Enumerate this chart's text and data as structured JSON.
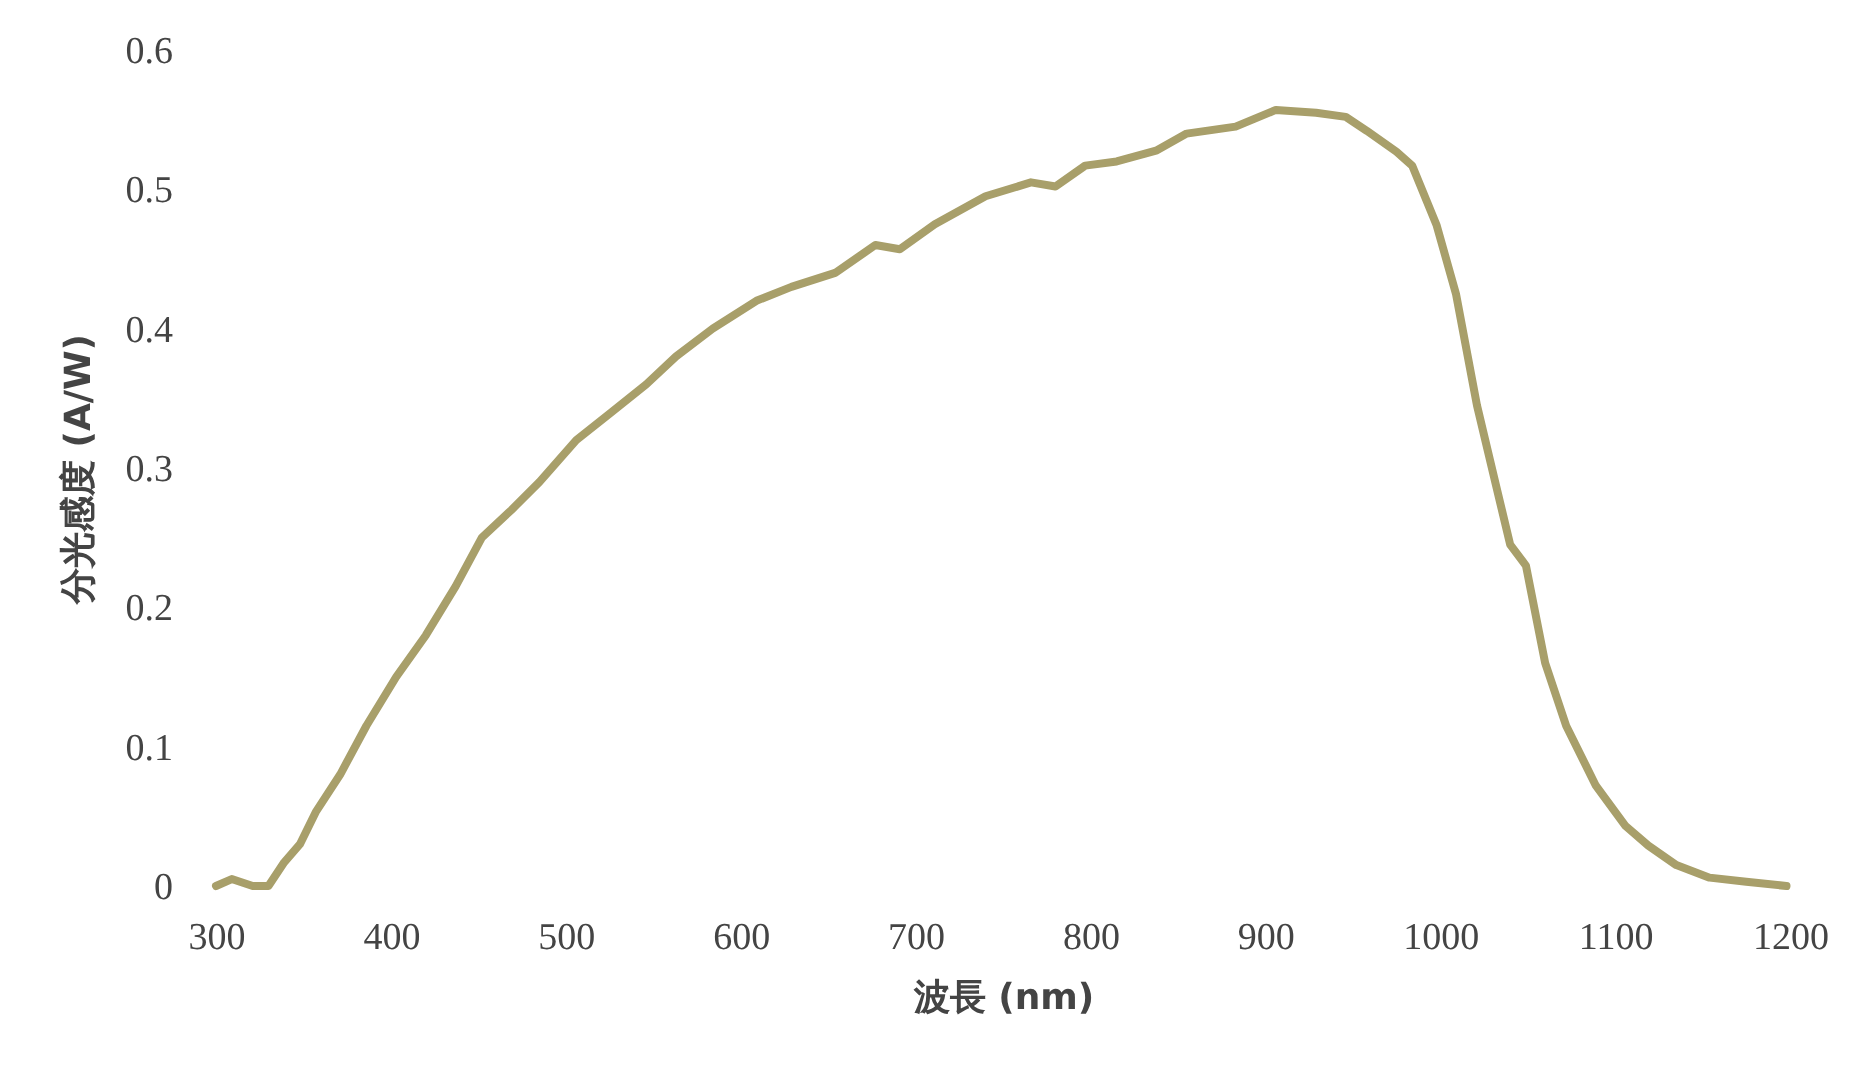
{
  "chart_data": {
    "type": "line",
    "xlabel": "波長 (nm)",
    "ylabel": "分光感度 (A/W)",
    "x": [
      300,
      309,
      321,
      330,
      339,
      348,
      357,
      371,
      386,
      403,
      420,
      437,
      452,
      469,
      485,
      506,
      526,
      546,
      563,
      584,
      609,
      629,
      654,
      677,
      691,
      711,
      740,
      766,
      780,
      797,
      815,
      838,
      855,
      883,
      906,
      929,
      946,
      958,
      975,
      984,
      998,
      1009,
      1021,
      1032,
      1040,
      1049,
      1060,
      1072,
      1089,
      1106,
      1119,
      1135,
      1154,
      1175,
      1198
    ],
    "series": [
      {
        "color": "#a89f6a",
        "values": [
          0,
          0.005,
          0,
          0,
          0.017,
          0.03,
          0.053,
          0.08,
          0.115,
          0.15,
          0.18,
          0.215,
          0.25,
          0.27,
          0.29,
          0.32,
          0.34,
          0.36,
          0.38,
          0.4,
          0.42,
          0.43,
          0.44,
          0.46,
          0.457,
          0.475,
          0.495,
          0.505,
          0.502,
          0.517,
          0.52,
          0.528,
          0.54,
          0.545,
          0.557,
          0.555,
          0.552,
          0.542,
          0.527,
          0.517,
          0.474,
          0.425,
          0.345,
          0.287,
          0.245,
          0.23,
          0.16,
          0.115,
          0.072,
          0.043,
          0.029,
          0.015,
          0.006,
          0.003,
          0
        ]
      }
    ],
    "xlim": [
      300,
      1200
    ],
    "xticks": [
      300,
      400,
      500,
      600,
      700,
      800,
      900,
      1000,
      1100,
      1200
    ],
    "ylim": [
      0,
      0.6
    ],
    "yticks": [
      0,
      0.1,
      0.2,
      0.3,
      0.4,
      0.5,
      0.6
    ],
    "grid": false,
    "legend": false,
    "line_style": "solid"
  }
}
